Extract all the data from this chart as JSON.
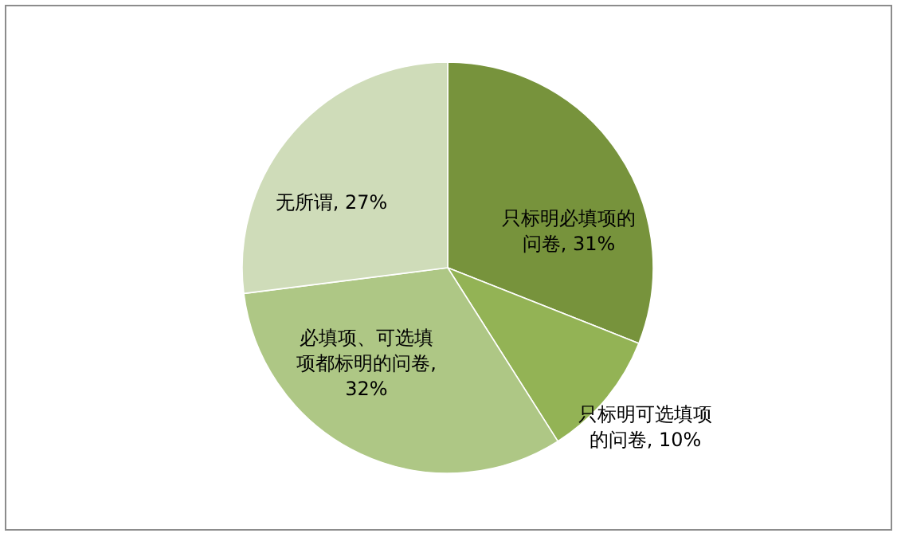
{
  "chart_data": {
    "type": "pie",
    "categories": [
      "只标明必填项的问卷",
      "只标明可选填项的问卷",
      "必填项、可选填项都标明的问卷",
      "无所谓"
    ],
    "values": [
      31,
      10,
      32,
      27
    ],
    "value_labels": [
      ", 31%",
      ", 10%",
      ", 32%",
      ", 27%"
    ],
    "colors": [
      "#77933c",
      "#93b355",
      "#aec785",
      "#cfdcb9"
    ]
  }
}
